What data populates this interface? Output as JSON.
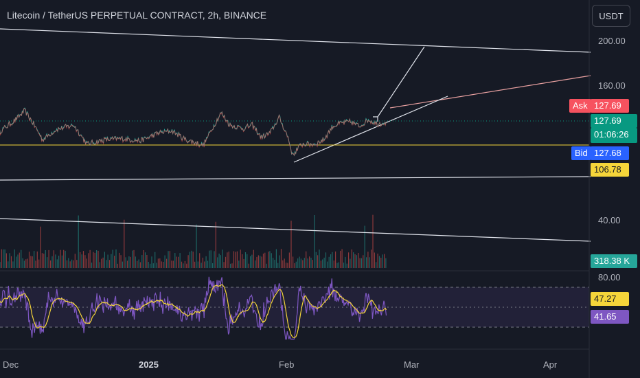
{
  "header": {
    "title": "Litecoin / TetherUS PERPETUAL CONTRACT, 2h, BINANCE",
    "currency_button": "USDT"
  },
  "price_axis": {
    "labels": [
      "200.00",
      "160.00"
    ],
    "volume_label": "40.00",
    "rsi_label": "80.00"
  },
  "tags": {
    "ask_label": "Ask",
    "ask_value": "127.69",
    "last_price": "127.69",
    "countdown": "01:06:26",
    "bid_label": "Bid",
    "bid_value": "127.68",
    "level_value": "106.78",
    "volume_value": "318.38 K",
    "rsi_ma_value": "47.27",
    "rsi_value": "41.65"
  },
  "time_axis": {
    "labels": [
      "Dec",
      "2025",
      "Feb",
      "Mar",
      "Apr"
    ]
  },
  "colors": {
    "background": "#161a25",
    "ask": "#f7525f",
    "last": "#089981",
    "bid": "#2962ff",
    "level": "#f5d53a",
    "volume_tag": "#26a69a",
    "rsi_ma": "#f5d53a",
    "rsi": "#7e57c2",
    "up": "#26a69a",
    "down": "#ef5350"
  },
  "chart_data": {
    "type": "line",
    "symbol": "LTCUSDT.P",
    "interval": "2h",
    "price_anchors": [
      {
        "date": "2024-11-29",
        "close": 118
      },
      {
        "date": "2024-12-03",
        "close": 130
      },
      {
        "date": "2024-12-05",
        "close": 138
      },
      {
        "date": "2024-12-07",
        "close": 126
      },
      {
        "date": "2024-12-09",
        "close": 112
      },
      {
        "date": "2024-12-12",
        "close": 121
      },
      {
        "date": "2024-12-16",
        "close": 125
      },
      {
        "date": "2024-12-19",
        "close": 108
      },
      {
        "date": "2024-12-23",
        "close": 112
      },
      {
        "date": "2024-12-27",
        "close": 113
      },
      {
        "date": "2024-12-31",
        "close": 111
      },
      {
        "date": "2025-01-04",
        "close": 118
      },
      {
        "date": "2025-01-07",
        "close": 120
      },
      {
        "date": "2025-01-10",
        "close": 112
      },
      {
        "date": "2025-01-14",
        "close": 107
      },
      {
        "date": "2025-01-16",
        "close": 122
      },
      {
        "date": "2025-01-18",
        "close": 136
      },
      {
        "date": "2025-01-20",
        "close": 125
      },
      {
        "date": "2025-01-23",
        "close": 122
      },
      {
        "date": "2025-01-25",
        "close": 125
      },
      {
        "date": "2025-01-27",
        "close": 114
      },
      {
        "date": "2025-01-29",
        "close": 118
      },
      {
        "date": "2025-01-31",
        "close": 132
      },
      {
        "date": "2025-02-02",
        "close": 114
      },
      {
        "date": "2025-02-03",
        "close": 98
      },
      {
        "date": "2025-02-05",
        "close": 108
      },
      {
        "date": "2025-02-08",
        "close": 108
      },
      {
        "date": "2025-02-10",
        "close": 112
      },
      {
        "date": "2025-02-12",
        "close": 124
      },
      {
        "date": "2025-02-14",
        "close": 127
      },
      {
        "date": "2025-02-16",
        "close": 128
      },
      {
        "date": "2025-02-18",
        "close": 124
      },
      {
        "date": "2025-02-20",
        "close": 130
      },
      {
        "date": "2025-02-22",
        "close": 126
      },
      {
        "date": "2025-02-24",
        "close": 128
      }
    ],
    "levels": {
      "ask": 127.69,
      "last": 127.69,
      "bid": 127.68,
      "horizontal": 106.78
    },
    "rsi": {
      "upper_band": 70,
      "middle_band": 50,
      "lower_band": 30,
      "value": 41.65,
      "ma": 47.27
    },
    "volume_last": "318.38 K",
    "grid": false
  }
}
